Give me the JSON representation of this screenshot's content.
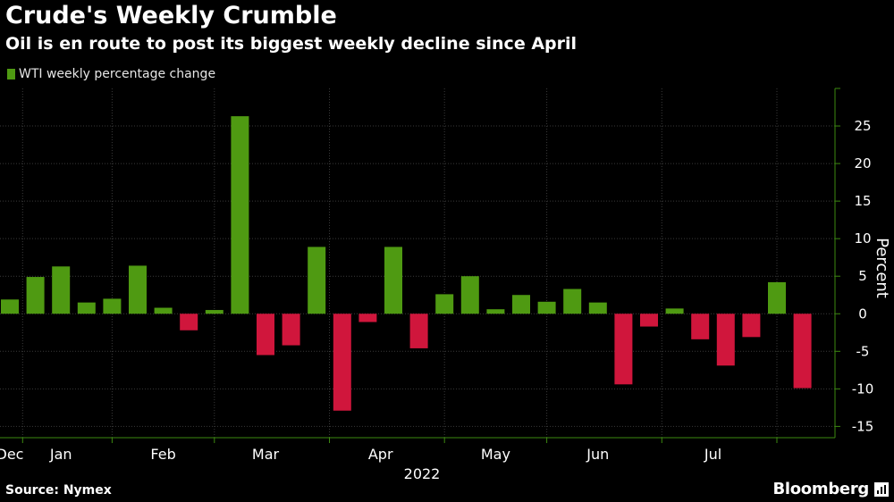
{
  "title": "Crude's Weekly Crumble",
  "subtitle": "Oil is en route to post its biggest weekly decline since April",
  "legend": {
    "label": "WTI weekly percentage change"
  },
  "colors": {
    "positive": "#4f9a12",
    "negative": "#d0163c",
    "grid": "#3a3a3a",
    "axis": "#3d8a10",
    "text": "#ffffff"
  },
  "footer": {
    "source": "Source: Nymex",
    "brand": "Bloomberg",
    "brand_icon": "bloomberg-mark-icon"
  },
  "chart_data": {
    "type": "bar",
    "title": "Crude's Weekly Crumble",
    "series": [
      {
        "name": "WTI weekly percentage change",
        "values": [
          1.9,
          4.9,
          6.3,
          1.5,
          2.0,
          6.4,
          0.8,
          -2.2,
          0.5,
          26.3,
          -5.5,
          -4.2,
          8.9,
          -12.9,
          -1.1,
          8.9,
          -4.6,
          2.6,
          5.0,
          0.6,
          2.5,
          1.6,
          3.3,
          1.5,
          -9.4,
          -1.7,
          0.7,
          -3.4,
          -6.9,
          -3.1,
          4.2,
          -9.9
        ]
      }
    ],
    "ylabel": "Percent",
    "ylim": [
      -16.5,
      30
    ],
    "yticks": [
      -15,
      -10,
      -5,
      0,
      5,
      10,
      15,
      20,
      25
    ],
    "x_labels": [
      {
        "label": "Dec",
        "index": 0
      },
      {
        "label": "Jan",
        "index": 2
      },
      {
        "label": "Feb",
        "index": 6
      },
      {
        "label": "Mar",
        "index": 10
      },
      {
        "label": "Apr",
        "index": 14.5
      },
      {
        "label": "May",
        "index": 19
      },
      {
        "label": "Jun",
        "index": 23
      },
      {
        "label": "Jul",
        "index": 27.5
      }
    ],
    "year_label": "2022",
    "vertical_gridlines_at": [
      0.5,
      4,
      8,
      12.5,
      17,
      21,
      25.5,
      30
    ],
    "legend_position": "top-left"
  }
}
